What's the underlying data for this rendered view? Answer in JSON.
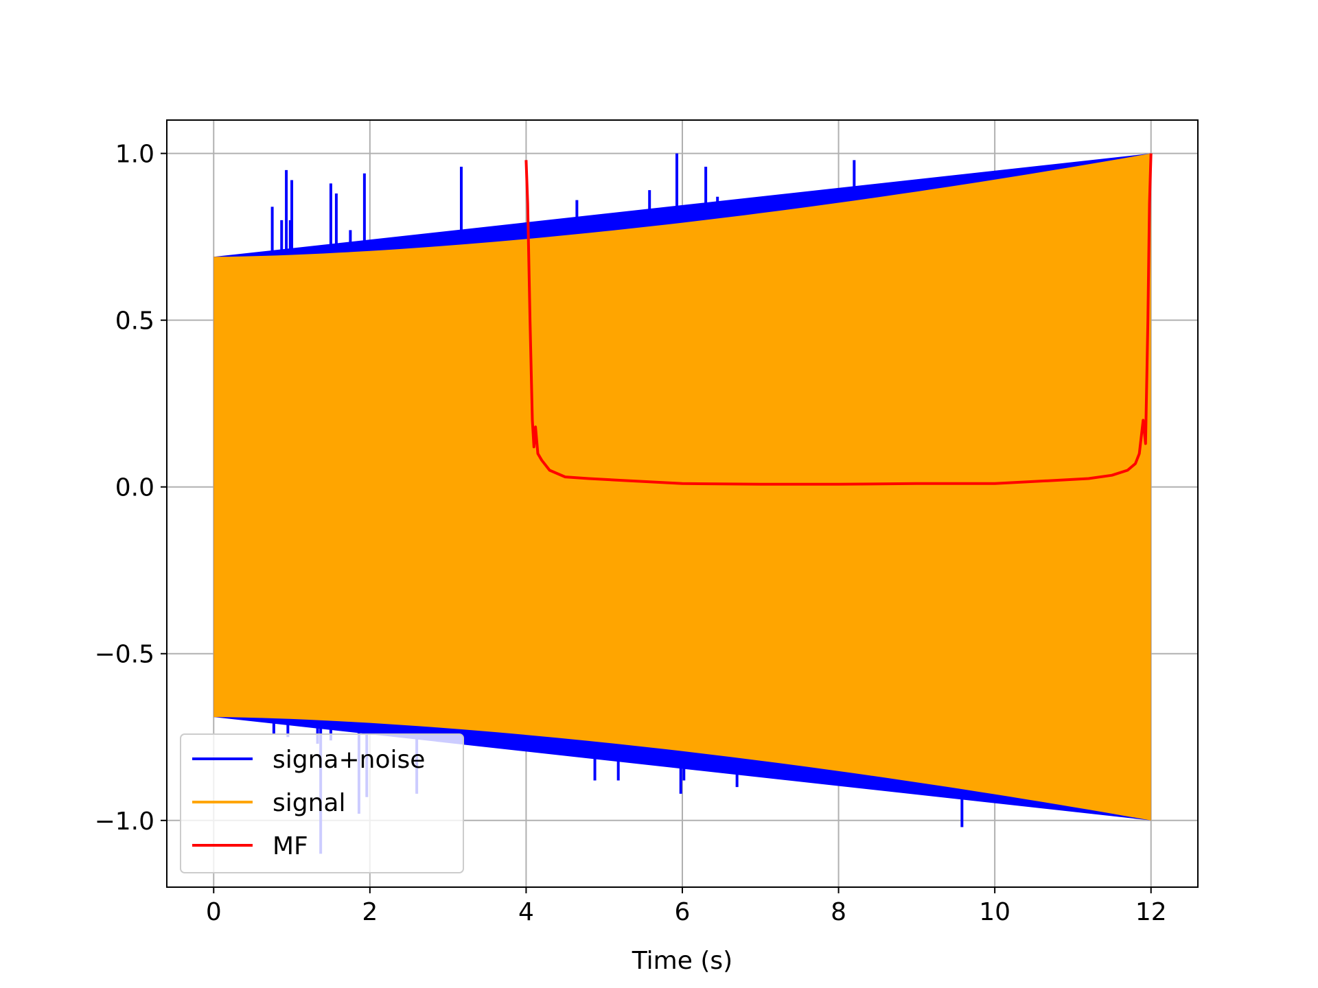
{
  "chart_data": {
    "type": "line",
    "title": "",
    "xlabel": "Time (s)",
    "ylabel": "",
    "xlim": [
      -0.6,
      12.6
    ],
    "ylim": [
      -1.2,
      1.1
    ],
    "grid": true,
    "legend_position": "lower-left",
    "x_ticks": [
      0,
      2,
      4,
      6,
      8,
      10,
      12
    ],
    "x_tick_labels": [
      "0",
      "2",
      "4",
      "6",
      "8",
      "10",
      "12"
    ],
    "y_ticks": [
      -1.0,
      -0.5,
      0.0,
      0.5,
      1.0
    ],
    "y_tick_labels": [
      "−1.0",
      "−0.5",
      "0.0",
      "0.5",
      "1.0"
    ],
    "series": [
      {
        "name": "signa+noise",
        "color": "#0000ff",
        "envelope": {
          "x": [
            0,
            12
          ],
          "upper_start": 0.69,
          "upper_end": 1.0,
          "lower_start": -0.69,
          "lower_end": -1.0
        },
        "spikes": [
          {
            "x": 0.75,
            "y": 0.84
          },
          {
            "x": 0.87,
            "y": 0.8
          },
          {
            "x": 0.93,
            "y": 0.95
          },
          {
            "x": 0.98,
            "y": 0.8
          },
          {
            "x": 1.0,
            "y": 0.92
          },
          {
            "x": 1.35,
            "y": 0.72
          },
          {
            "x": 1.5,
            "y": 0.91
          },
          {
            "x": 1.57,
            "y": 0.88
          },
          {
            "x": 1.75,
            "y": 0.77
          },
          {
            "x": 1.93,
            "y": 0.94
          },
          {
            "x": 3.17,
            "y": 0.96
          },
          {
            "x": 4.42,
            "y": 0.79
          },
          {
            "x": 4.65,
            "y": 0.86
          },
          {
            "x": 5.58,
            "y": 0.89
          },
          {
            "x": 5.93,
            "y": 1.0
          },
          {
            "x": 6.0,
            "y": 0.79
          },
          {
            "x": 6.3,
            "y": 0.96
          },
          {
            "x": 6.45,
            "y": 0.87
          },
          {
            "x": 7.6,
            "y": 0.88
          },
          {
            "x": 7.93,
            "y": 0.87
          },
          {
            "x": 8.2,
            "y": 0.98
          },
          {
            "x": 0.77,
            "y": -0.74
          },
          {
            "x": 0.95,
            "y": -0.75
          },
          {
            "x": 1.33,
            "y": -0.77
          },
          {
            "x": 1.37,
            "y": -1.1
          },
          {
            "x": 1.5,
            "y": -0.76
          },
          {
            "x": 1.86,
            "y": -0.98
          },
          {
            "x": 1.96,
            "y": -0.93
          },
          {
            "x": 2.6,
            "y": -0.92
          },
          {
            "x": 2.95,
            "y": -0.75
          },
          {
            "x": 3.2,
            "y": -0.74
          },
          {
            "x": 4.88,
            "y": -0.88
          },
          {
            "x": 5.18,
            "y": -0.88
          },
          {
            "x": 5.55,
            "y": -0.82
          },
          {
            "x": 5.98,
            "y": -0.92
          },
          {
            "x": 6.02,
            "y": -0.88
          },
          {
            "x": 6.35,
            "y": -0.82
          },
          {
            "x": 6.7,
            "y": -0.9
          },
          {
            "x": 9.58,
            "y": -1.02
          }
        ]
      },
      {
        "name": "signal",
        "color": "#ffa500",
        "envelope": {
          "x": [
            0,
            12
          ],
          "upper_start": 0.69,
          "upper_end": 1.0,
          "lower_start": -0.69,
          "lower_end": -1.0
        }
      },
      {
        "name": "MF",
        "color": "#ff0000",
        "x": [
          4.0,
          4.02,
          4.05,
          4.08,
          4.1,
          4.12,
          4.15,
          4.2,
          4.3,
          4.5,
          4.8,
          5.2,
          6.0,
          7.0,
          8.0,
          9.0,
          10.0,
          10.8,
          11.2,
          11.5,
          11.7,
          11.8,
          11.85,
          11.9,
          11.93,
          11.96,
          11.98,
          12.0
        ],
        "values": [
          0.98,
          0.85,
          0.5,
          0.2,
          0.12,
          0.18,
          0.1,
          0.08,
          0.05,
          0.03,
          0.025,
          0.02,
          0.01,
          0.008,
          0.008,
          0.01,
          0.01,
          0.02,
          0.025,
          0.035,
          0.05,
          0.07,
          0.1,
          0.2,
          0.13,
          0.5,
          0.85,
          1.0
        ]
      }
    ]
  }
}
